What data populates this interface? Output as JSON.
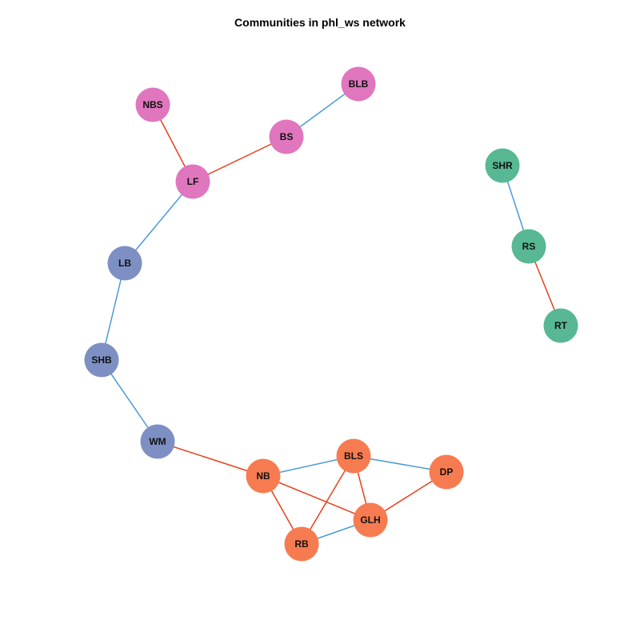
{
  "title": "Communities in phl_ws network",
  "edge_colors": {
    "blue": "#4b9ad8",
    "red": "#e8401c"
  },
  "community_colors": {
    "pink": "#df76be",
    "slate": "#7d8fc3",
    "orange": "#f77b51",
    "green": "#57b893"
  },
  "nodes": [
    {
      "id": "BLB",
      "label": "BLB",
      "community": "pink"
    },
    {
      "id": "NBS",
      "label": "NBS",
      "community": "pink"
    },
    {
      "id": "BS",
      "label": "BS",
      "community": "pink"
    },
    {
      "id": "LF",
      "label": "LF",
      "community": "pink"
    },
    {
      "id": "LB",
      "label": "LB",
      "community": "slate"
    },
    {
      "id": "SHB",
      "label": "SHB",
      "community": "slate"
    },
    {
      "id": "WM",
      "label": "WM",
      "community": "slate"
    },
    {
      "id": "NB",
      "label": "NB",
      "community": "orange"
    },
    {
      "id": "BLS",
      "label": "BLS",
      "community": "orange"
    },
    {
      "id": "DP",
      "label": "DP",
      "community": "orange"
    },
    {
      "id": "GLH",
      "label": "GLH",
      "community": "orange"
    },
    {
      "id": "RB",
      "label": "RB",
      "community": "orange"
    },
    {
      "id": "SHR",
      "label": "SHR",
      "community": "green"
    },
    {
      "id": "RS",
      "label": "RS",
      "community": "green"
    },
    {
      "id": "RT",
      "label": "RT",
      "community": "green"
    }
  ],
  "edges": [
    {
      "source": "BLB",
      "target": "BS",
      "color": "blue"
    },
    {
      "source": "NBS",
      "target": "LF",
      "color": "red"
    },
    {
      "source": "BS",
      "target": "LF",
      "color": "red"
    },
    {
      "source": "LF",
      "target": "LB",
      "color": "blue"
    },
    {
      "source": "LB",
      "target": "SHB",
      "color": "blue"
    },
    {
      "source": "SHB",
      "target": "WM",
      "color": "blue"
    },
    {
      "source": "WM",
      "target": "NB",
      "color": "red"
    },
    {
      "source": "NB",
      "target": "BLS",
      "color": "blue"
    },
    {
      "source": "NB",
      "target": "GLH",
      "color": "red"
    },
    {
      "source": "NB",
      "target": "RB",
      "color": "red"
    },
    {
      "source": "BLS",
      "target": "DP",
      "color": "blue"
    },
    {
      "source": "BLS",
      "target": "GLH",
      "color": "red"
    },
    {
      "source": "BLS",
      "target": "RB",
      "color": "red"
    },
    {
      "source": "DP",
      "target": "GLH",
      "color": "red"
    },
    {
      "source": "GLH",
      "target": "RB",
      "color": "blue"
    },
    {
      "source": "SHR",
      "target": "RS",
      "color": "blue"
    },
    {
      "source": "RS",
      "target": "RT",
      "color": "red"
    }
  ]
}
